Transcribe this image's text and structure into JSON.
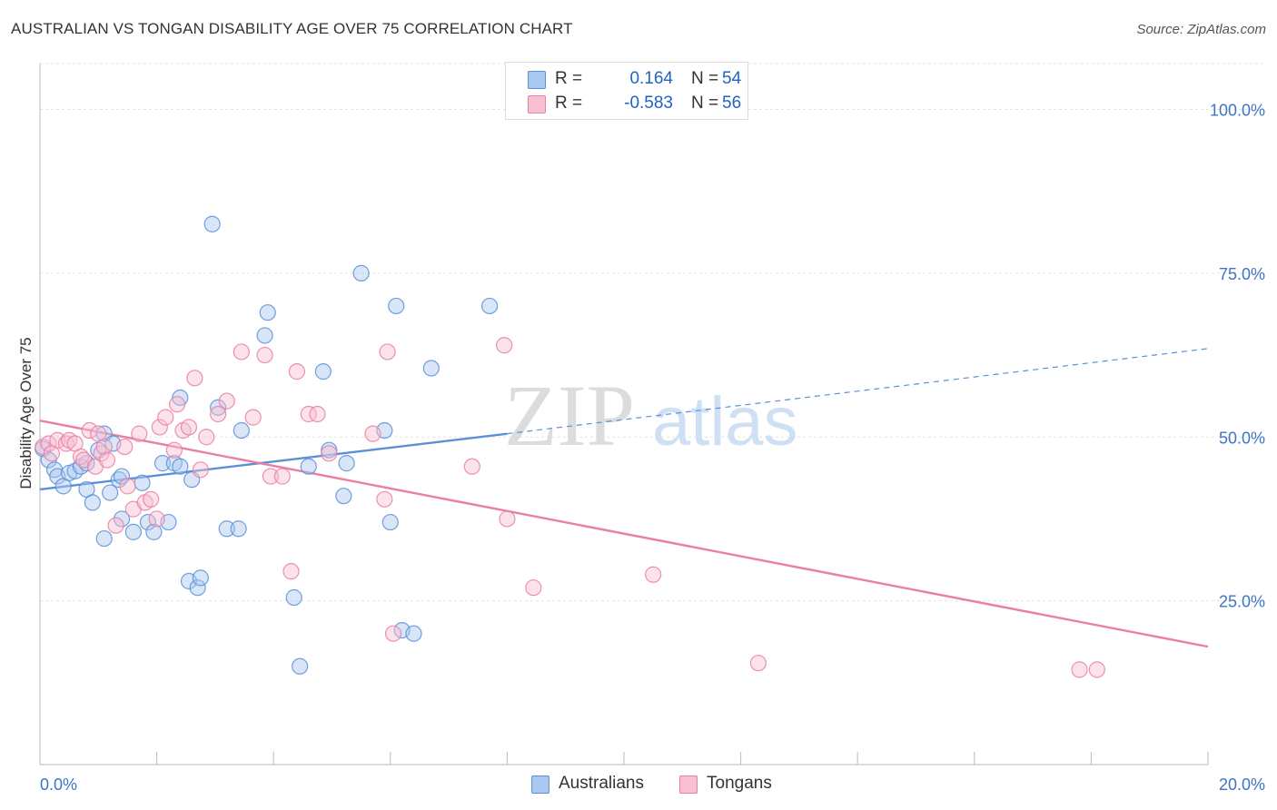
{
  "title": "AUSTRALIAN VS TONGAN DISABILITY AGE OVER 75 CORRELATION CHART",
  "source": "Source: ZipAtlas.com",
  "watermark": {
    "zip": "ZIP",
    "atlas": "atlas"
  },
  "legend": {
    "rows": [
      {
        "r_label": "R =",
        "r_value": "0.164",
        "n_label": "N =",
        "n_value": "54",
        "color": "#a9c8f0",
        "border": "#5b8fd6"
      },
      {
        "r_label": "R =",
        "r_value": "-0.583",
        "n_label": "N =",
        "n_value": "56",
        "color": "#f7bfd2",
        "border": "#e97fa2"
      }
    ]
  },
  "bottom_legend": [
    {
      "label": "Australians",
      "color": "#a9c8f0",
      "border": "#5b8fd6"
    },
    {
      "label": "Tongans",
      "color": "#f7bfd2",
      "border": "#e97fa2"
    }
  ],
  "chart_data": {
    "type": "scatter",
    "title": "AUSTRALIAN VS TONGAN DISABILITY AGE OVER 75 CORRELATION CHART",
    "xlabel": "",
    "ylabel": "Disability Age Over 75",
    "xlim": [
      0,
      20
    ],
    "ylim": [
      0,
      107
    ],
    "x_tick_labels": [
      "0.0%",
      "20.0%"
    ],
    "y_ticks": [
      25,
      50,
      75,
      100
    ],
    "y_tick_labels": [
      "25.0%",
      "50.0%",
      "75.0%",
      "100.0%"
    ],
    "grid": true,
    "legend_placement": "top-center",
    "series": [
      {
        "name": "Australians",
        "color": "#5b8fd6",
        "fill": "#a9c8f0",
        "points": [
          [
            0.05,
            48.2
          ],
          [
            0.15,
            46.5
          ],
          [
            0.25,
            45.0
          ],
          [
            0.3,
            44.0
          ],
          [
            0.4,
            42.5
          ],
          [
            0.5,
            44.5
          ],
          [
            0.6,
            44.8
          ],
          [
            0.7,
            45.5
          ],
          [
            0.8,
            42.0
          ],
          [
            0.9,
            40.0
          ],
          [
            1.0,
            48.0
          ],
          [
            1.1,
            50.5
          ],
          [
            1.2,
            41.5
          ],
          [
            1.25,
            49.0
          ],
          [
            1.35,
            43.5
          ],
          [
            1.4,
            44.0
          ],
          [
            1.1,
            34.5
          ],
          [
            1.6,
            35.5
          ],
          [
            1.75,
            43.0
          ],
          [
            1.85,
            37.0
          ],
          [
            1.95,
            35.5
          ],
          [
            2.2,
            37.0
          ],
          [
            2.1,
            46.0
          ],
          [
            2.3,
            46.0
          ],
          [
            2.4,
            45.5
          ],
          [
            2.4,
            56.0
          ],
          [
            2.6,
            43.5
          ],
          [
            2.55,
            28.0
          ],
          [
            2.7,
            27.0
          ],
          [
            2.95,
            82.5
          ],
          [
            2.75,
            28.5
          ],
          [
            3.05,
            54.5
          ],
          [
            3.2,
            36.0
          ],
          [
            3.4,
            36.0
          ],
          [
            3.45,
            51.0
          ],
          [
            3.85,
            65.5
          ],
          [
            3.9,
            69.0
          ],
          [
            4.35,
            25.5
          ],
          [
            4.6,
            45.5
          ],
          [
            4.85,
            60.0
          ],
          [
            4.95,
            48.0
          ],
          [
            5.25,
            46.0
          ],
          [
            5.2,
            41.0
          ],
          [
            5.5,
            75.0
          ],
          [
            5.9,
            51.0
          ],
          [
            6.0,
            37.0
          ],
          [
            6.1,
            70.0
          ],
          [
            6.2,
            20.5
          ],
          [
            6.4,
            20.0
          ],
          [
            6.7,
            60.5
          ],
          [
            7.7,
            70.0
          ],
          [
            4.45,
            15.0
          ],
          [
            0.8,
            46.0
          ],
          [
            1.4,
            37.5
          ]
        ],
        "trend": {
          "x0": 0,
          "y0": 42.0,
          "x1": 8.0,
          "y1": 50.5,
          "dashed_to_x": 20,
          "dashed_to_y": 63.5
        }
      },
      {
        "name": "Tongans",
        "color": "#e97fa2",
        "fill": "#f7bfd2",
        "points": [
          [
            0.05,
            48.5
          ],
          [
            0.15,
            49.0
          ],
          [
            0.3,
            49.5
          ],
          [
            0.45,
            49.0
          ],
          [
            0.5,
            49.5
          ],
          [
            0.6,
            49.0
          ],
          [
            0.7,
            47.0
          ],
          [
            0.75,
            46.5
          ],
          [
            0.85,
            51.0
          ],
          [
            0.95,
            45.5
          ],
          [
            1.0,
            50.5
          ],
          [
            1.05,
            47.5
          ],
          [
            1.1,
            48.5
          ],
          [
            1.15,
            46.5
          ],
          [
            1.3,
            36.5
          ],
          [
            1.45,
            48.5
          ],
          [
            1.5,
            42.5
          ],
          [
            1.6,
            39.0
          ],
          [
            1.7,
            50.5
          ],
          [
            1.8,
            40.0
          ],
          [
            1.9,
            40.5
          ],
          [
            2.0,
            37.5
          ],
          [
            2.05,
            51.5
          ],
          [
            2.15,
            53.0
          ],
          [
            2.3,
            48.0
          ],
          [
            2.35,
            55.0
          ],
          [
            2.45,
            51.0
          ],
          [
            2.55,
            51.5
          ],
          [
            2.65,
            59.0
          ],
          [
            2.75,
            45.0
          ],
          [
            2.85,
            50.0
          ],
          [
            3.05,
            53.5
          ],
          [
            3.2,
            55.5
          ],
          [
            3.45,
            63.0
          ],
          [
            3.65,
            53.0
          ],
          [
            3.85,
            62.5
          ],
          [
            3.95,
            44.0
          ],
          [
            4.15,
            44.0
          ],
          [
            4.3,
            29.5
          ],
          [
            4.4,
            60.0
          ],
          [
            4.6,
            53.5
          ],
          [
            4.75,
            53.5
          ],
          [
            4.95,
            47.5
          ],
          [
            5.7,
            50.5
          ],
          [
            5.9,
            40.5
          ],
          [
            5.95,
            63.0
          ],
          [
            6.05,
            20.0
          ],
          [
            7.4,
            45.5
          ],
          [
            7.95,
            64.0
          ],
          [
            8.0,
            37.5
          ],
          [
            8.45,
            27.0
          ],
          [
            10.5,
            29.0
          ],
          [
            12.3,
            15.5
          ],
          [
            17.8,
            14.5
          ],
          [
            18.1,
            14.5
          ],
          [
            0.2,
            47.5
          ]
        ],
        "trend": {
          "x0": 0,
          "y0": 52.5,
          "x1": 20,
          "y1": 18.0
        }
      }
    ]
  }
}
